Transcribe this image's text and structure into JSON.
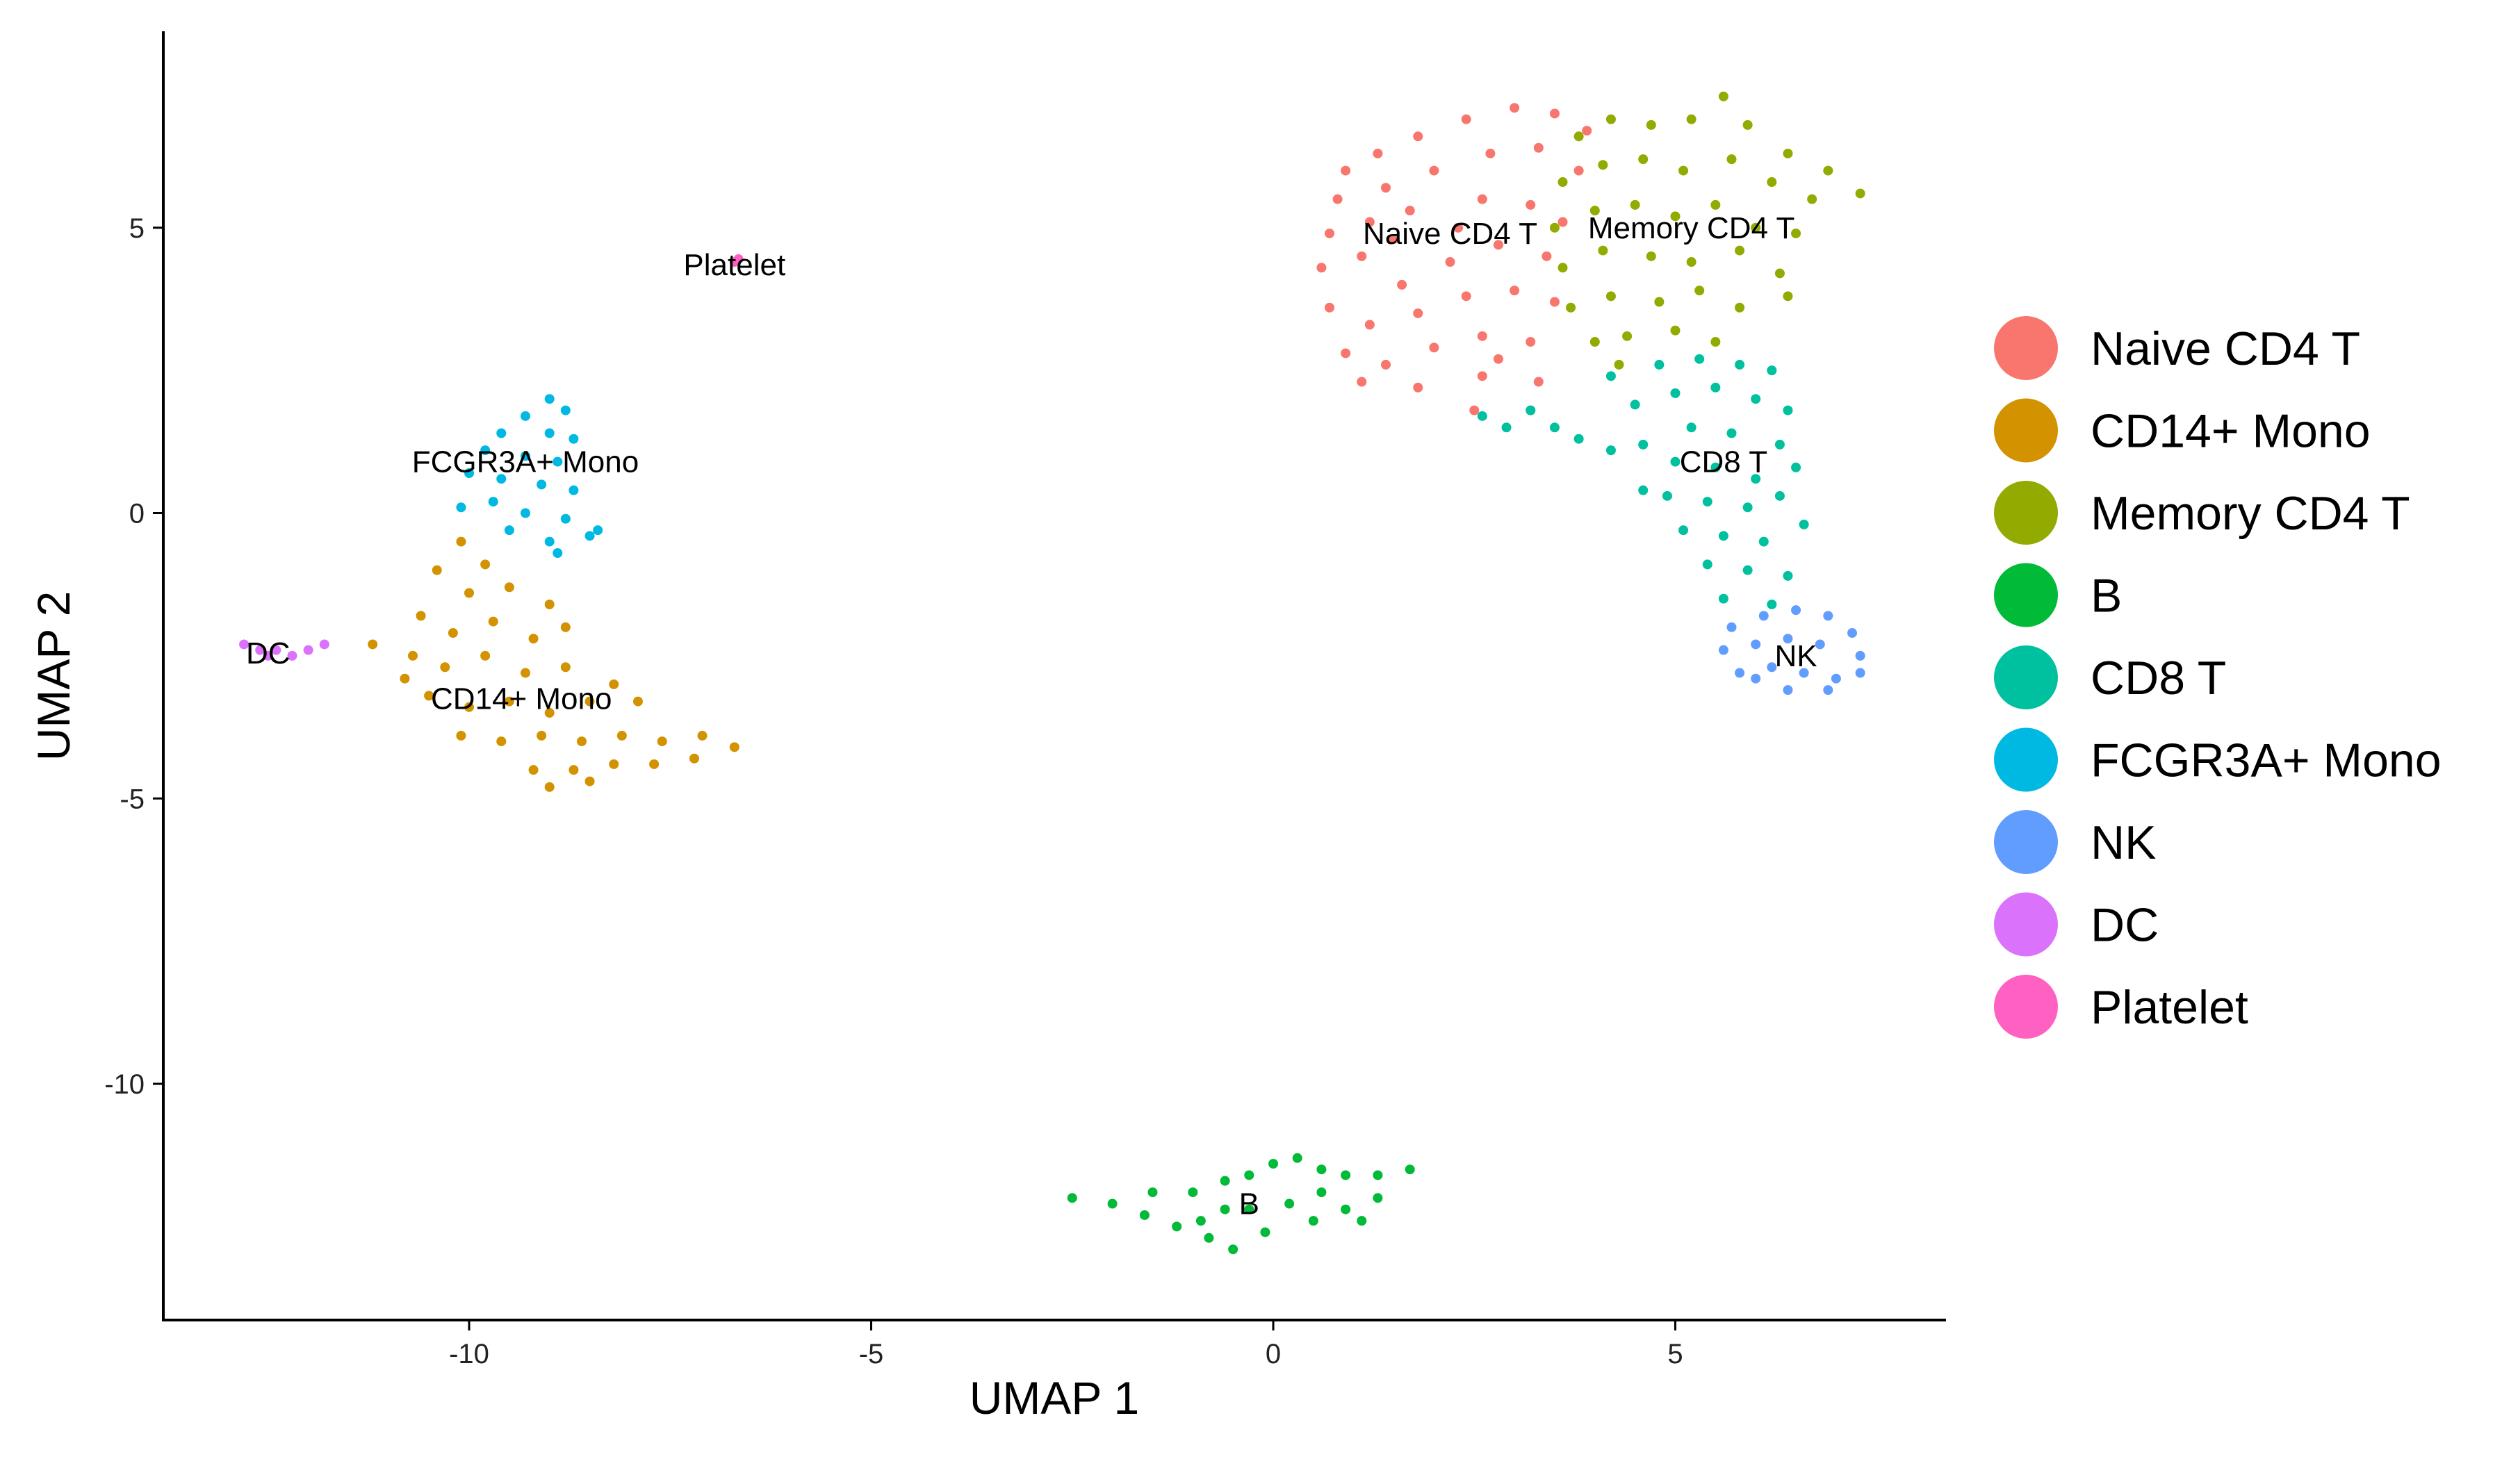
{
  "chart_data": {
    "type": "scatter",
    "xlabel": "UMAP 1",
    "ylabel": "UMAP 2",
    "xlim": [
      -13.8,
      8.4
    ],
    "ylim": [
      -14.1,
      8.4
    ],
    "xticks": [
      -10,
      -5,
      0,
      5
    ],
    "yticks": [
      -10,
      -5,
      0,
      5
    ],
    "grid": false,
    "legend_position": "right",
    "series": [
      {
        "name": "Naive CD4 T",
        "color": "#F8766D",
        "label_at": [
          2.2,
          4.9
        ],
        "points": [
          [
            0.9,
            6.0
          ],
          [
            1.3,
            6.3
          ],
          [
            1.8,
            6.6
          ],
          [
            2.4,
            6.9
          ],
          [
            3.0,
            7.1
          ],
          [
            3.5,
            7.0
          ],
          [
            3.9,
            6.7
          ],
          [
            0.8,
            5.5
          ],
          [
            1.4,
            5.7
          ],
          [
            2.0,
            6.0
          ],
          [
            2.7,
            6.3
          ],
          [
            3.3,
            6.4
          ],
          [
            3.8,
            6.0
          ],
          [
            0.7,
            4.9
          ],
          [
            1.2,
            5.1
          ],
          [
            1.7,
            5.3
          ],
          [
            2.6,
            5.5
          ],
          [
            3.2,
            5.4
          ],
          [
            3.6,
            5.1
          ],
          [
            0.6,
            4.3
          ],
          [
            1.1,
            4.5
          ],
          [
            1.6,
            4.0
          ],
          [
            2.2,
            4.4
          ],
          [
            2.8,
            4.7
          ],
          [
            3.4,
            4.5
          ],
          [
            0.7,
            3.6
          ],
          [
            1.2,
            3.3
          ],
          [
            1.8,
            3.5
          ],
          [
            2.4,
            3.8
          ],
          [
            3.0,
            3.9
          ],
          [
            3.5,
            3.7
          ],
          [
            0.9,
            2.8
          ],
          [
            1.4,
            2.6
          ],
          [
            2.0,
            2.9
          ],
          [
            2.6,
            3.1
          ],
          [
            3.2,
            3.0
          ],
          [
            1.1,
            2.3
          ],
          [
            1.8,
            2.2
          ],
          [
            2.6,
            2.4
          ],
          [
            3.3,
            2.3
          ],
          [
            2.5,
            1.8
          ],
          [
            3.2,
            1.8
          ],
          [
            2.8,
            2.7
          ],
          [
            1.5,
            4.8
          ],
          [
            2.3,
            5.0
          ]
        ]
      },
      {
        "name": "CD14+ Mono",
        "color": "#D39200",
        "label_at": [
          -9.35,
          -3.25
        ],
        "points": [
          [
            -10.1,
            -0.5
          ],
          [
            -9.8,
            -0.9
          ],
          [
            -10.4,
            -1.0
          ],
          [
            -10.0,
            -1.4
          ],
          [
            -9.5,
            -1.3
          ],
          [
            -9.0,
            -1.6
          ],
          [
            -10.6,
            -1.8
          ],
          [
            -10.2,
            -2.1
          ],
          [
            -9.7,
            -1.9
          ],
          [
            -9.2,
            -2.2
          ],
          [
            -8.8,
            -2.0
          ],
          [
            -11.2,
            -2.3
          ],
          [
            -10.7,
            -2.5
          ],
          [
            -10.3,
            -2.7
          ],
          [
            -9.8,
            -2.5
          ],
          [
            -9.3,
            -2.8
          ],
          [
            -8.8,
            -2.7
          ],
          [
            -8.2,
            -3.0
          ],
          [
            -10.5,
            -3.2
          ],
          [
            -10.0,
            -3.4
          ],
          [
            -9.5,
            -3.3
          ],
          [
            -9.0,
            -3.5
          ],
          [
            -8.5,
            -3.3
          ],
          [
            -7.9,
            -3.3
          ],
          [
            -10.1,
            -3.9
          ],
          [
            -9.6,
            -4.0
          ],
          [
            -9.1,
            -3.9
          ],
          [
            -8.6,
            -4.0
          ],
          [
            -8.1,
            -3.9
          ],
          [
            -7.6,
            -4.0
          ],
          [
            -7.1,
            -3.9
          ],
          [
            -6.7,
            -4.1
          ],
          [
            -9.2,
            -4.5
          ],
          [
            -8.7,
            -4.5
          ],
          [
            -8.2,
            -4.4
          ],
          [
            -7.7,
            -4.4
          ],
          [
            -7.2,
            -4.3
          ],
          [
            -9.0,
            -4.8
          ],
          [
            -8.5,
            -4.7
          ],
          [
            -10.8,
            -2.9
          ]
        ]
      },
      {
        "name": "Memory CD4 T",
        "color": "#93AA00",
        "label_at": [
          5.2,
          5.0
        ],
        "points": [
          [
            3.8,
            6.6
          ],
          [
            4.2,
            6.9
          ],
          [
            4.7,
            6.8
          ],
          [
            5.2,
            6.9
          ],
          [
            5.6,
            7.3
          ],
          [
            5.9,
            6.8
          ],
          [
            6.4,
            6.3
          ],
          [
            6.9,
            6.0
          ],
          [
            7.3,
            5.6
          ],
          [
            3.6,
            5.8
          ],
          [
            4.1,
            6.1
          ],
          [
            4.6,
            6.2
          ],
          [
            5.1,
            6.0
          ],
          [
            5.7,
            6.2
          ],
          [
            6.2,
            5.8
          ],
          [
            6.7,
            5.5
          ],
          [
            3.5,
            5.0
          ],
          [
            4.0,
            5.3
          ],
          [
            4.5,
            5.4
          ],
          [
            5.0,
            5.2
          ],
          [
            5.5,
            5.4
          ],
          [
            6.0,
            5.0
          ],
          [
            6.5,
            4.9
          ],
          [
            3.6,
            4.3
          ],
          [
            4.1,
            4.6
          ],
          [
            4.7,
            4.5
          ],
          [
            5.2,
            4.4
          ],
          [
            5.8,
            4.6
          ],
          [
            6.3,
            4.2
          ],
          [
            3.7,
            3.6
          ],
          [
            4.2,
            3.8
          ],
          [
            4.8,
            3.7
          ],
          [
            5.3,
            3.9
          ],
          [
            5.8,
            3.6
          ],
          [
            6.4,
            3.8
          ],
          [
            4.0,
            3.0
          ],
          [
            4.4,
            3.1
          ],
          [
            5.0,
            3.2
          ],
          [
            5.5,
            3.0
          ],
          [
            4.3,
            2.6
          ]
        ]
      },
      {
        "name": "B",
        "color": "#00BA38",
        "label_at": [
          -0.3,
          -12.1
        ],
        "points": [
          [
            -2.5,
            -12.0
          ],
          [
            -2.0,
            -12.1
          ],
          [
            -1.6,
            -12.3
          ],
          [
            -1.2,
            -12.5
          ],
          [
            -0.8,
            -12.7
          ],
          [
            -0.5,
            -12.9
          ],
          [
            -0.1,
            -12.6
          ],
          [
            -1.0,
            -11.9
          ],
          [
            -0.6,
            -12.2
          ],
          [
            -0.3,
            -11.6
          ],
          [
            0.0,
            -11.4
          ],
          [
            0.3,
            -11.3
          ],
          [
            0.6,
            -11.5
          ],
          [
            0.9,
            -11.6
          ],
          [
            1.3,
            -11.6
          ],
          [
            1.7,
            -11.5
          ],
          [
            0.2,
            -12.1
          ],
          [
            0.5,
            -12.4
          ],
          [
            0.9,
            -12.2
          ],
          [
            1.3,
            -12.0
          ],
          [
            -0.3,
            -12.2
          ],
          [
            0.6,
            -11.9
          ],
          [
            -1.5,
            -11.9
          ],
          [
            -0.9,
            -12.4
          ],
          [
            1.1,
            -12.4
          ],
          [
            -0.6,
            -11.7
          ]
        ]
      },
      {
        "name": "CD8 T",
        "color": "#00C19F",
        "label_at": [
          5.6,
          0.9
        ],
        "points": [
          [
            4.2,
            2.4
          ],
          [
            4.8,
            2.6
          ],
          [
            5.3,
            2.7
          ],
          [
            5.8,
            2.6
          ],
          [
            6.2,
            2.5
          ],
          [
            4.5,
            1.9
          ],
          [
            5.0,
            2.1
          ],
          [
            5.5,
            2.2
          ],
          [
            6.0,
            2.0
          ],
          [
            6.4,
            1.8
          ],
          [
            3.2,
            1.8
          ],
          [
            3.5,
            1.5
          ],
          [
            3.8,
            1.3
          ],
          [
            4.2,
            1.1
          ],
          [
            4.6,
            1.2
          ],
          [
            2.6,
            1.7
          ],
          [
            2.9,
            1.5
          ],
          [
            5.2,
            1.5
          ],
          [
            5.7,
            1.4
          ],
          [
            6.3,
            1.2
          ],
          [
            6.5,
            0.8
          ],
          [
            5.0,
            0.9
          ],
          [
            5.5,
            0.8
          ],
          [
            6.0,
            0.6
          ],
          [
            4.9,
            0.3
          ],
          [
            5.4,
            0.2
          ],
          [
            5.9,
            0.1
          ],
          [
            6.3,
            0.3
          ],
          [
            5.1,
            -0.3
          ],
          [
            5.6,
            -0.4
          ],
          [
            6.1,
            -0.5
          ],
          [
            5.4,
            -0.9
          ],
          [
            5.9,
            -1.0
          ],
          [
            6.4,
            -1.1
          ],
          [
            5.6,
            -1.5
          ],
          [
            6.2,
            -1.6
          ],
          [
            4.6,
            0.4
          ],
          [
            6.6,
            -0.2
          ]
        ]
      },
      {
        "name": "FCGR3A+ Mono",
        "color": "#00B9E3",
        "label_at": [
          -9.3,
          0.9
        ],
        "points": [
          [
            -9.0,
            2.0
          ],
          [
            -8.8,
            1.8
          ],
          [
            -9.3,
            1.7
          ],
          [
            -9.6,
            1.4
          ],
          [
            -9.0,
            1.4
          ],
          [
            -8.7,
            1.3
          ],
          [
            -9.8,
            1.1
          ],
          [
            -9.3,
            1.0
          ],
          [
            -8.9,
            0.9
          ],
          [
            -10.0,
            0.7
          ],
          [
            -9.6,
            0.6
          ],
          [
            -9.1,
            0.5
          ],
          [
            -8.7,
            0.4
          ],
          [
            -10.1,
            0.1
          ],
          [
            -9.7,
            0.2
          ],
          [
            -9.3,
            0.0
          ],
          [
            -8.8,
            -0.1
          ],
          [
            -8.5,
            -0.4
          ],
          [
            -9.0,
            -0.5
          ],
          [
            -9.5,
            -0.3
          ],
          [
            -8.4,
            -0.3
          ],
          [
            -8.9,
            -0.7
          ]
        ]
      },
      {
        "name": "NK",
        "color": "#619CFF",
        "label_at": [
          6.5,
          -2.5
        ],
        "points": [
          [
            5.7,
            -2.0
          ],
          [
            6.1,
            -1.8
          ],
          [
            6.5,
            -1.7
          ],
          [
            6.9,
            -1.8
          ],
          [
            7.2,
            -2.1
          ],
          [
            5.6,
            -2.4
          ],
          [
            6.0,
            -2.3
          ],
          [
            6.4,
            -2.2
          ],
          [
            6.8,
            -2.3
          ],
          [
            7.3,
            -2.5
          ],
          [
            5.8,
            -2.8
          ],
          [
            6.2,
            -2.7
          ],
          [
            6.6,
            -2.8
          ],
          [
            7.0,
            -2.9
          ],
          [
            6.4,
            -3.1
          ],
          [
            6.9,
            -3.1
          ],
          [
            7.3,
            -2.8
          ],
          [
            6.0,
            -2.9
          ]
        ]
      },
      {
        "name": "DC",
        "color": "#DB72FB",
        "label_at": [
          -12.5,
          -2.45
        ],
        "points": [
          [
            -12.8,
            -2.3
          ],
          [
            -12.6,
            -2.4
          ],
          [
            -12.4,
            -2.4
          ],
          [
            -12.2,
            -2.5
          ],
          [
            -12.0,
            -2.4
          ],
          [
            -11.8,
            -2.3
          ],
          [
            -12.5,
            -2.5
          ]
        ]
      },
      {
        "name": "Platelet",
        "color": "#FF61C3",
        "label_at": [
          -6.7,
          4.35
        ],
        "points": [
          [
            -6.7,
            4.4
          ],
          [
            -6.65,
            4.45
          ]
        ]
      }
    ]
  }
}
